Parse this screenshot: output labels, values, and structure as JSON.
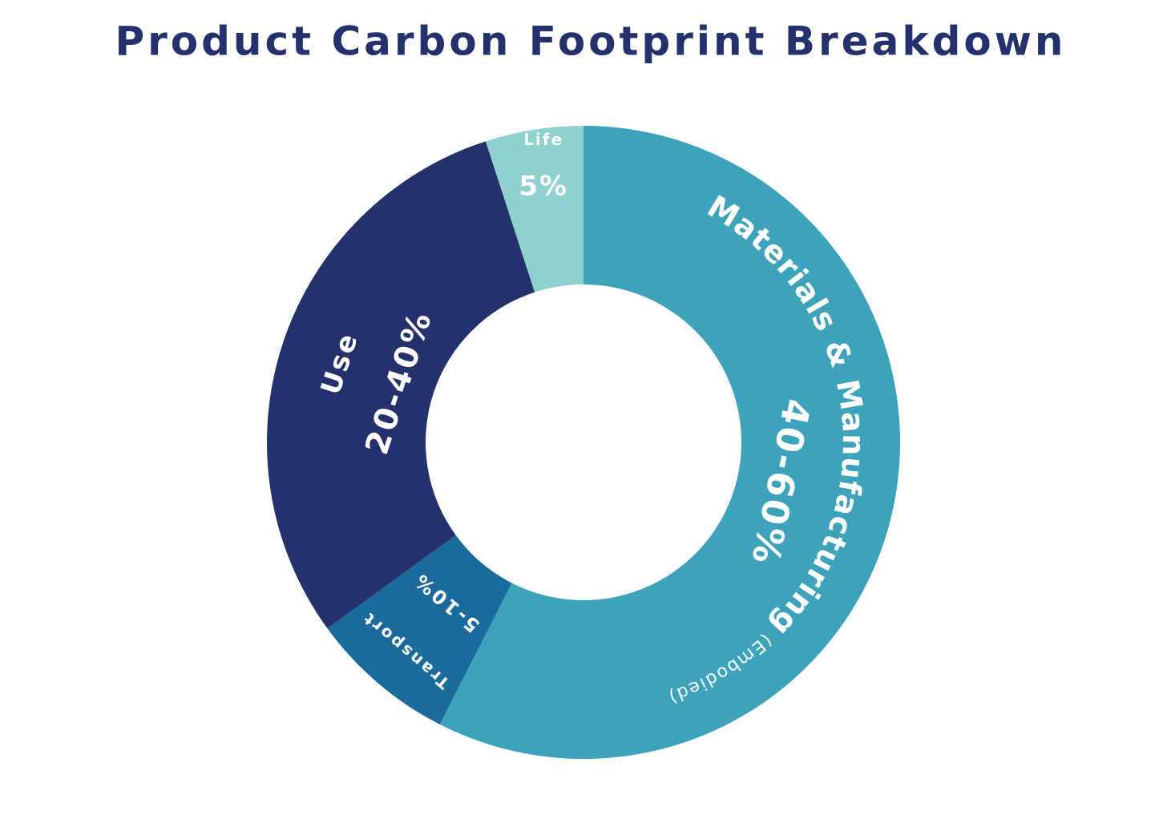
{
  "chart_data": {
    "type": "donut",
    "title": "Product Carbon Footprint Breakdown",
    "categories": [
      "Materials & Manufacturing",
      "Transport",
      "Use",
      "End of Life"
    ],
    "values": [
      57.5,
      7.5,
      30,
      5
    ],
    "value_labels": [
      "40-60%",
      "5-10%",
      "20-40%",
      "5%"
    ],
    "colors": [
      "#3ca3bb",
      "#1b6a9c",
      "#25316c",
      "#8fd1cf"
    ],
    "annotation": "(Embodied)"
  }
}
